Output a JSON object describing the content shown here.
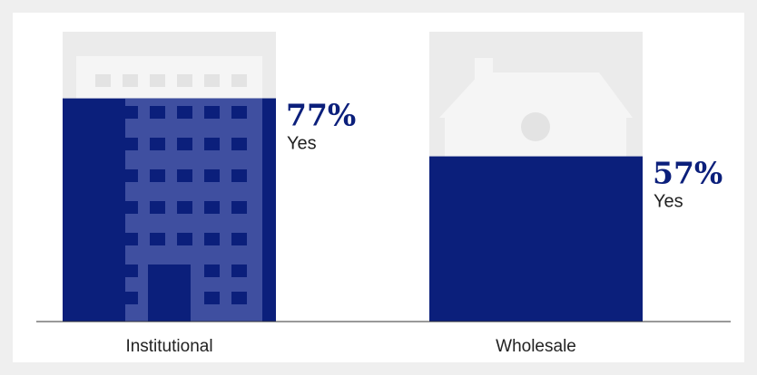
{
  "chart_data": {
    "type": "icon-fill",
    "categories": [
      "Institutional",
      "Wholesale"
    ],
    "values": [
      77,
      57
    ],
    "value_labels": [
      "77%",
      "57%"
    ],
    "series_label": "Yes",
    "color": "#0b1f7b",
    "ylim": [
      0,
      100
    ]
  }
}
